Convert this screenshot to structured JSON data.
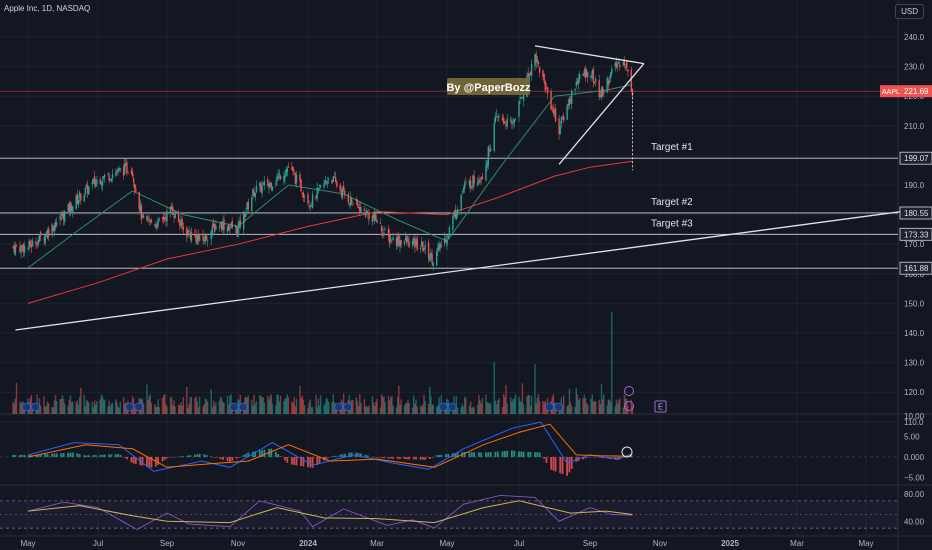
{
  "header": {
    "symbol_line": "Apple Inc, 1D, NASDAQ",
    "currency_button": "USD"
  },
  "watermark": "By @PaperBozz",
  "colors": {
    "background": "#131722",
    "bull": "#26a69a",
    "bear": "#ef5350",
    "ma_fast": "#2e8b6e",
    "ma_slow": "#e53935",
    "level_line": "#d1d4dc",
    "macd": "#2962ff",
    "signal": "#ff6d00",
    "rsi": "#7e57c2",
    "rsi_ma": "#c9b458"
  },
  "chart_data": [
    {
      "type": "candlestick",
      "title": "",
      "x_ticks": [
        "May",
        "Jul",
        "Sep",
        "Nov",
        "2024",
        "Mar",
        "May",
        "Jul",
        "Sep",
        "Nov",
        "2025",
        "Mar",
        "May"
      ],
      "y_ticks": [
        110,
        120,
        130,
        140,
        150,
        160,
        170,
        180,
        190,
        200,
        210,
        220,
        230,
        240
      ],
      "ylim": [
        110,
        245
      ],
      "price_path": [
        {
          "date": "2023-05-01",
          "close": 169
        },
        {
          "date": "2023-05-15",
          "close": 173
        },
        {
          "date": "2023-06-01",
          "close": 180
        },
        {
          "date": "2023-06-15",
          "close": 186
        },
        {
          "date": "2023-07-01",
          "close": 192
        },
        {
          "date": "2023-07-15",
          "close": 194
        },
        {
          "date": "2023-07-31",
          "close": 196
        },
        {
          "date": "2023-08-10",
          "close": 178
        },
        {
          "date": "2023-08-25",
          "close": 177
        },
        {
          "date": "2023-09-05",
          "close": 182
        },
        {
          "date": "2023-09-15",
          "close": 175
        },
        {
          "date": "2023-10-01",
          "close": 171
        },
        {
          "date": "2023-10-15",
          "close": 177
        },
        {
          "date": "2023-11-01",
          "close": 175
        },
        {
          "date": "2023-11-15",
          "close": 188
        },
        {
          "date": "2023-12-01",
          "close": 191
        },
        {
          "date": "2023-12-15",
          "close": 196
        },
        {
          "date": "2024-01-03",
          "close": 184
        },
        {
          "date": "2024-01-20",
          "close": 193
        },
        {
          "date": "2024-02-01",
          "close": 187
        },
        {
          "date": "2024-02-15",
          "close": 182
        },
        {
          "date": "2024-03-01",
          "close": 178
        },
        {
          "date": "2024-03-10",
          "close": 172
        },
        {
          "date": "2024-03-25",
          "close": 171
        },
        {
          "date": "2024-04-10",
          "close": 169
        },
        {
          "date": "2024-04-19",
          "close": 165
        },
        {
          "date": "2024-05-01",
          "close": 173
        },
        {
          "date": "2024-05-15",
          "close": 189
        },
        {
          "date": "2024-06-01",
          "close": 194
        },
        {
          "date": "2024-06-12",
          "close": 213
        },
        {
          "date": "2024-06-25",
          "close": 210
        },
        {
          "date": "2024-07-15",
          "close": 234
        },
        {
          "date": "2024-08-05",
          "close": 209
        },
        {
          "date": "2024-08-20",
          "close": 225
        },
        {
          "date": "2024-09-01",
          "close": 229
        },
        {
          "date": "2024-09-10",
          "close": 220
        },
        {
          "date": "2024-09-20",
          "close": 228
        },
        {
          "date": "2024-09-30",
          "close": 233
        },
        {
          "date": "2024-10-08",
          "close": 221.69
        }
      ],
      "moving_averages": {
        "fast_ma": [
          {
            "date": "2023-05-01",
            "value": 162
          },
          {
            "date": "2023-06-15",
            "value": 175
          },
          {
            "date": "2023-08-01",
            "value": 188
          },
          {
            "date": "2023-09-15",
            "value": 180
          },
          {
            "date": "2023-11-01",
            "value": 176
          },
          {
            "date": "2023-12-15",
            "value": 190
          },
          {
            "date": "2024-02-01",
            "value": 187
          },
          {
            "date": "2024-03-20",
            "value": 178
          },
          {
            "date": "2024-05-01",
            "value": 171
          },
          {
            "date": "2024-06-15",
            "value": 196
          },
          {
            "date": "2024-08-01",
            "value": 220
          },
          {
            "date": "2024-09-15",
            "value": 222
          },
          {
            "date": "2024-10-08",
            "value": 224
          }
        ],
        "slow_ma": [
          {
            "date": "2023-05-01",
            "value": 150
          },
          {
            "date": "2023-07-01",
            "value": 157
          },
          {
            "date": "2023-09-01",
            "value": 165
          },
          {
            "date": "2023-11-01",
            "value": 170
          },
          {
            "date": "2024-01-01",
            "value": 176
          },
          {
            "date": "2024-03-01",
            "value": 181
          },
          {
            "date": "2024-05-01",
            "value": 180
          },
          {
            "date": "2024-06-15",
            "value": 186
          },
          {
            "date": "2024-08-01",
            "value": 193
          },
          {
            "date": "2024-09-01",
            "value": 196
          },
          {
            "date": "2024-10-08",
            "value": 198
          }
        ]
      },
      "price_levels": [
        {
          "label": "Target #1",
          "value": 199.07,
          "badge": "199.07"
        },
        {
          "label": "Target #2",
          "value": 180.55,
          "badge": "180.55"
        },
        {
          "label": "Target #3",
          "value": 173.33,
          "badge": "173.33"
        },
        {
          "label": "",
          "value": 161.88,
          "badge": "161.88"
        }
      ],
      "current_price": {
        "symbol": "AAPL",
        "value": 221.69,
        "badge": "221.69"
      },
      "trendlines": [
        {
          "from": {
            "date": "2023-04-20",
            "value": 141
          },
          "to": {
            "date": "2025-06-01",
            "value": 181
          }
        },
        {
          "from": {
            "date": "2024-07-15",
            "value": 237
          },
          "to": {
            "date": "2024-10-18",
            "value": 231
          }
        },
        {
          "from": {
            "date": "2024-08-05",
            "value": 197
          },
          "to": {
            "date": "2024-10-18",
            "value": 231
          }
        }
      ],
      "projection_marker": {
        "date": "2024-10-08",
        "from": 221,
        "to": 195
      },
      "event_markers": {
        "earnings_label": "E"
      }
    },
    {
      "type": "histogram+line",
      "title": "",
      "y_ticks": [
        -5.0,
        0.0,
        5.0,
        10.0
      ],
      "y_tick_labels": [
        "−5.00",
        "0.000",
        "5.00",
        "10.00"
      ],
      "ylim": [
        -7,
        11
      ],
      "macd": [
        {
          "date": "2023-05-01",
          "value": 0.5
        },
        {
          "date": "2023-06-10",
          "value": 3.5
        },
        {
          "date": "2023-07-20",
          "value": 3
        },
        {
          "date": "2023-08-20",
          "value": -3.5
        },
        {
          "date": "2023-10-01",
          "value": -1
        },
        {
          "date": "2023-10-25",
          "value": -2.5
        },
        {
          "date": "2023-12-01",
          "value": 3.5
        },
        {
          "date": "2024-01-05",
          "value": -2
        },
        {
          "date": "2024-02-10",
          "value": 0.5
        },
        {
          "date": "2024-03-15",
          "value": -1.5
        },
        {
          "date": "2024-04-15",
          "value": -3
        },
        {
          "date": "2024-05-15",
          "value": 2
        },
        {
          "date": "2024-06-25",
          "value": 7
        },
        {
          "date": "2024-07-20",
          "value": 8.5
        },
        {
          "date": "2024-08-12",
          "value": -1.5
        },
        {
          "date": "2024-09-01",
          "value": 0.5
        },
        {
          "date": "2024-09-25",
          "value": -0.5
        },
        {
          "date": "2024-10-08",
          "value": 0.8
        }
      ],
      "signal": [
        {
          "date": "2023-05-01",
          "value": 0
        },
        {
          "date": "2023-06-20",
          "value": 3
        },
        {
          "date": "2023-08-01",
          "value": 2
        },
        {
          "date": "2023-09-01",
          "value": -2.5
        },
        {
          "date": "2023-10-15",
          "value": -1.5
        },
        {
          "date": "2023-11-10",
          "value": -1
        },
        {
          "date": "2023-12-15",
          "value": 3
        },
        {
          "date": "2024-01-20",
          "value": -1
        },
        {
          "date": "2024-03-01",
          "value": -0.5
        },
        {
          "date": "2024-04-20",
          "value": -2.5
        },
        {
          "date": "2024-06-01",
          "value": 3
        },
        {
          "date": "2024-07-01",
          "value": 6
        },
        {
          "date": "2024-07-28",
          "value": 8
        },
        {
          "date": "2024-08-20",
          "value": 0.5
        },
        {
          "date": "2024-09-10",
          "value": 0.3
        },
        {
          "date": "2024-10-08",
          "value": 0.2
        }
      ]
    },
    {
      "type": "line",
      "title": "",
      "y_ticks": [
        40,
        60,
        80
      ],
      "y_tick_labels": [
        "40.00",
        "",
        "80.00"
      ],
      "ylim": [
        22,
        88
      ],
      "band": [
        30,
        70
      ],
      "rsi": [
        {
          "date": "2023-05-01",
          "value": 55
        },
        {
          "date": "2023-06-01",
          "value": 68
        },
        {
          "date": "2023-07-01",
          "value": 60
        },
        {
          "date": "2023-08-05",
          "value": 28
        },
        {
          "date": "2023-09-01",
          "value": 52
        },
        {
          "date": "2023-09-20",
          "value": 36
        },
        {
          "date": "2023-10-25",
          "value": 32
        },
        {
          "date": "2023-11-20",
          "value": 70
        },
        {
          "date": "2023-12-25",
          "value": 55
        },
        {
          "date": "2024-01-05",
          "value": 32
        },
        {
          "date": "2024-02-01",
          "value": 58
        },
        {
          "date": "2024-03-10",
          "value": 34
        },
        {
          "date": "2024-04-01",
          "value": 42
        },
        {
          "date": "2024-04-20",
          "value": 30
        },
        {
          "date": "2024-05-15",
          "value": 65
        },
        {
          "date": "2024-06-15",
          "value": 78
        },
        {
          "date": "2024-07-15",
          "value": 75
        },
        {
          "date": "2024-08-05",
          "value": 40
        },
        {
          "date": "2024-09-01",
          "value": 60
        },
        {
          "date": "2024-09-20",
          "value": 50
        },
        {
          "date": "2024-10-08",
          "value": 49
        }
      ],
      "rsi_ma": [
        {
          "date": "2023-05-01",
          "value": 55
        },
        {
          "date": "2023-06-15",
          "value": 63
        },
        {
          "date": "2023-08-01",
          "value": 48
        },
        {
          "date": "2023-09-01",
          "value": 40
        },
        {
          "date": "2023-10-25",
          "value": 38
        },
        {
          "date": "2023-12-05",
          "value": 60
        },
        {
          "date": "2024-01-15",
          "value": 45
        },
        {
          "date": "2024-03-01",
          "value": 44
        },
        {
          "date": "2024-04-20",
          "value": 38
        },
        {
          "date": "2024-06-01",
          "value": 60
        },
        {
          "date": "2024-07-01",
          "value": 70
        },
        {
          "date": "2024-08-15",
          "value": 52
        },
        {
          "date": "2024-09-15",
          "value": 55
        },
        {
          "date": "2024-10-08",
          "value": 50
        }
      ]
    }
  ]
}
